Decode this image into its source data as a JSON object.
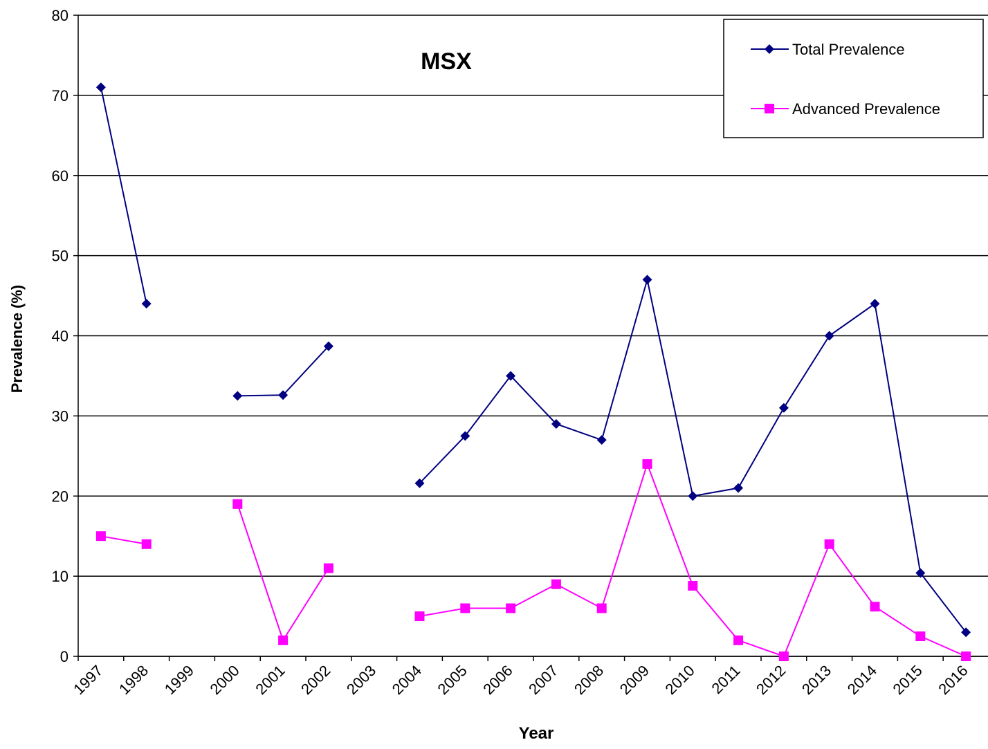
{
  "chart_data": {
    "type": "line",
    "title": "MSX",
    "x_label": "Year",
    "y_label": "Prevalence (%)",
    "categories": [
      "1997",
      "1998",
      "1999",
      "2000",
      "2001",
      "2002",
      "2003",
      "2004",
      "2005",
      "2006",
      "2007",
      "2008",
      "2009",
      "2010",
      "2011",
      "2012",
      "2013",
      "2014",
      "2015",
      "2016"
    ],
    "series": [
      {
        "name": "Total Prevalence",
        "color": "#000080",
        "marker": "diamond",
        "values": [
          71,
          44,
          null,
          32.5,
          32.6,
          38.7,
          null,
          21.6,
          27.5,
          35,
          29,
          27,
          47,
          20,
          21,
          31,
          40,
          44,
          10.4,
          3
        ]
      },
      {
        "name": "Advanced Prevalence",
        "color": "#ff00ff",
        "marker": "square",
        "values": [
          15,
          14,
          null,
          19,
          2,
          11,
          null,
          5,
          6,
          6,
          9,
          6,
          24,
          8.8,
          2,
          0,
          14,
          6.2,
          2.5,
          0
        ]
      }
    ],
    "ylim": [
      0,
      80
    ],
    "yticks": [
      0,
      10,
      20,
      30,
      40,
      50,
      60,
      70,
      80
    ],
    "grid": true,
    "legend": "top-right"
  }
}
